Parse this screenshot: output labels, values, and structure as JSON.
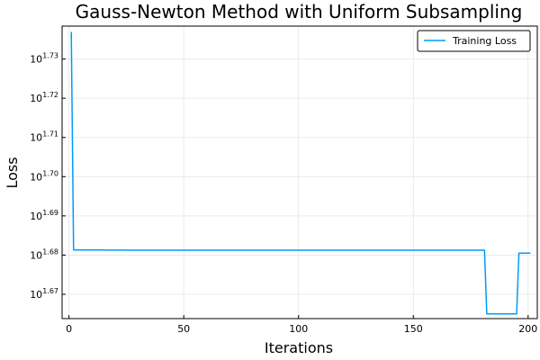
{
  "chart_data": {
    "type": "line",
    "title": "Gauss-Newton Method with Uniform Subsampling",
    "xlabel": "Iterations",
    "ylabel": "Loss",
    "xscale": "linear",
    "yscale": "log",
    "xlim": [
      -3,
      204
    ],
    "ylim_log10": [
      1.6638,
      1.7384
    ],
    "grid": true,
    "legend_position": "top-right",
    "x_ticks": [
      {
        "value": 0,
        "label": "0"
      },
      {
        "value": 50,
        "label": "50"
      },
      {
        "value": 100,
        "label": "100"
      },
      {
        "value": 150,
        "label": "150"
      },
      {
        "value": 200,
        "label": "200"
      }
    ],
    "y_ticks": [
      {
        "log10": 1.73,
        "base": "10",
        "exp": "1.73"
      },
      {
        "log10": 1.72,
        "base": "10",
        "exp": "1.72"
      },
      {
        "log10": 1.71,
        "base": "10",
        "exp": "1.71"
      },
      {
        "log10": 1.7,
        "base": "10",
        "exp": "1.70"
      },
      {
        "log10": 1.69,
        "base": "10",
        "exp": "1.69"
      },
      {
        "log10": 1.68,
        "base": "10",
        "exp": "1.68"
      },
      {
        "log10": 1.67,
        "base": "10",
        "exp": "1.67"
      }
    ],
    "series": [
      {
        "name": "Training Loss",
        "color": "#009AFA",
        "x": [
          1,
          2,
          15,
          16,
          24,
          25,
          181,
          182,
          195,
          196,
          201
        ],
        "y_log10": [
          1.7369,
          1.6813,
          1.6813,
          1.68128,
          1.68128,
          1.68125,
          1.68125,
          1.665,
          1.665,
          1.6805,
          1.6805
        ]
      }
    ]
  }
}
